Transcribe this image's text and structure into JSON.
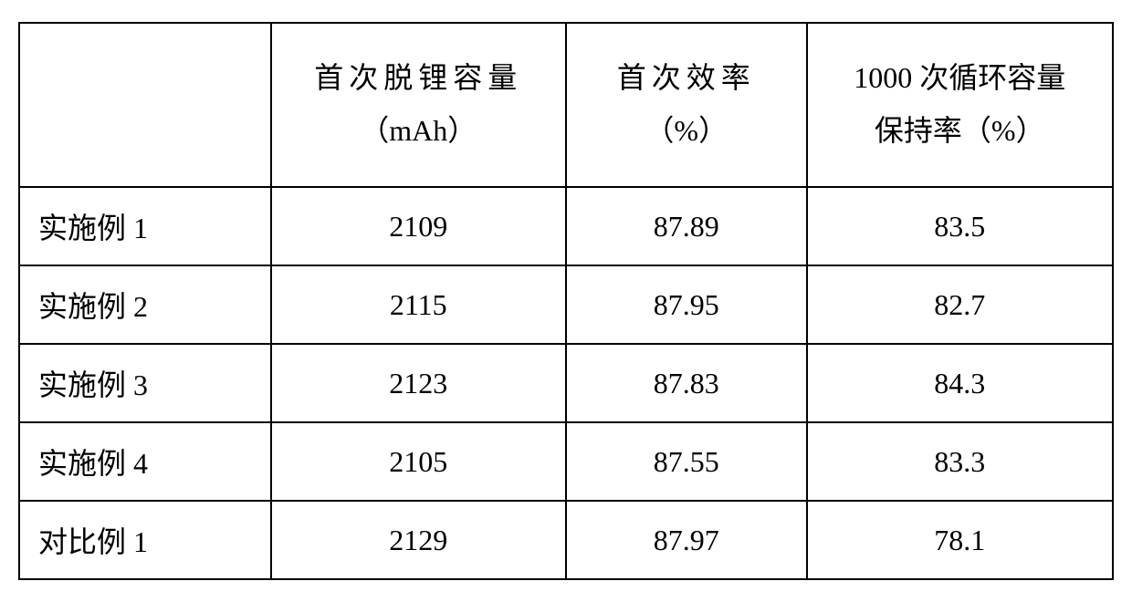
{
  "table": {
    "type": "table",
    "columns": [
      {
        "key": "label",
        "header_line1": "",
        "header_line2": "",
        "width_pct": 23,
        "align": "left"
      },
      {
        "key": "capacity",
        "header_line1": "首次脱锂容量",
        "header_line2": "（mAh）",
        "width_pct": 27,
        "align": "center"
      },
      {
        "key": "efficiency",
        "header_line1": "首次效率",
        "header_line2": "（%）",
        "width_pct": 22,
        "align": "center"
      },
      {
        "key": "retention",
        "header_line1": "1000 次循环容量",
        "header_line2": "保持率（%）",
        "width_pct": 28,
        "align": "center"
      }
    ],
    "rows": [
      {
        "label": "实施例 1",
        "capacity": "2109",
        "efficiency": "87.89",
        "retention": "83.5"
      },
      {
        "label": "实施例 2",
        "capacity": "2115",
        "efficiency": "87.95",
        "retention": "82.7"
      },
      {
        "label": "实施例 3",
        "capacity": "2123",
        "efficiency": "87.83",
        "retention": "84.3"
      },
      {
        "label": "实施例 4",
        "capacity": "2105",
        "efficiency": "87.55",
        "retention": "83.3"
      },
      {
        "label": "对比例 1",
        "capacity": "2129",
        "efficiency": "87.97",
        "retention": "78.1"
      }
    ],
    "border_color": "#000000",
    "border_width": 2,
    "background_color": "#ffffff",
    "font_family": "SimSun",
    "header_fontsize": 32,
    "cell_fontsize": 32,
    "header_row_height": 180,
    "data_row_height": 86,
    "text_color": "#000000",
    "header_letter_spacing_col1": "wide"
  }
}
